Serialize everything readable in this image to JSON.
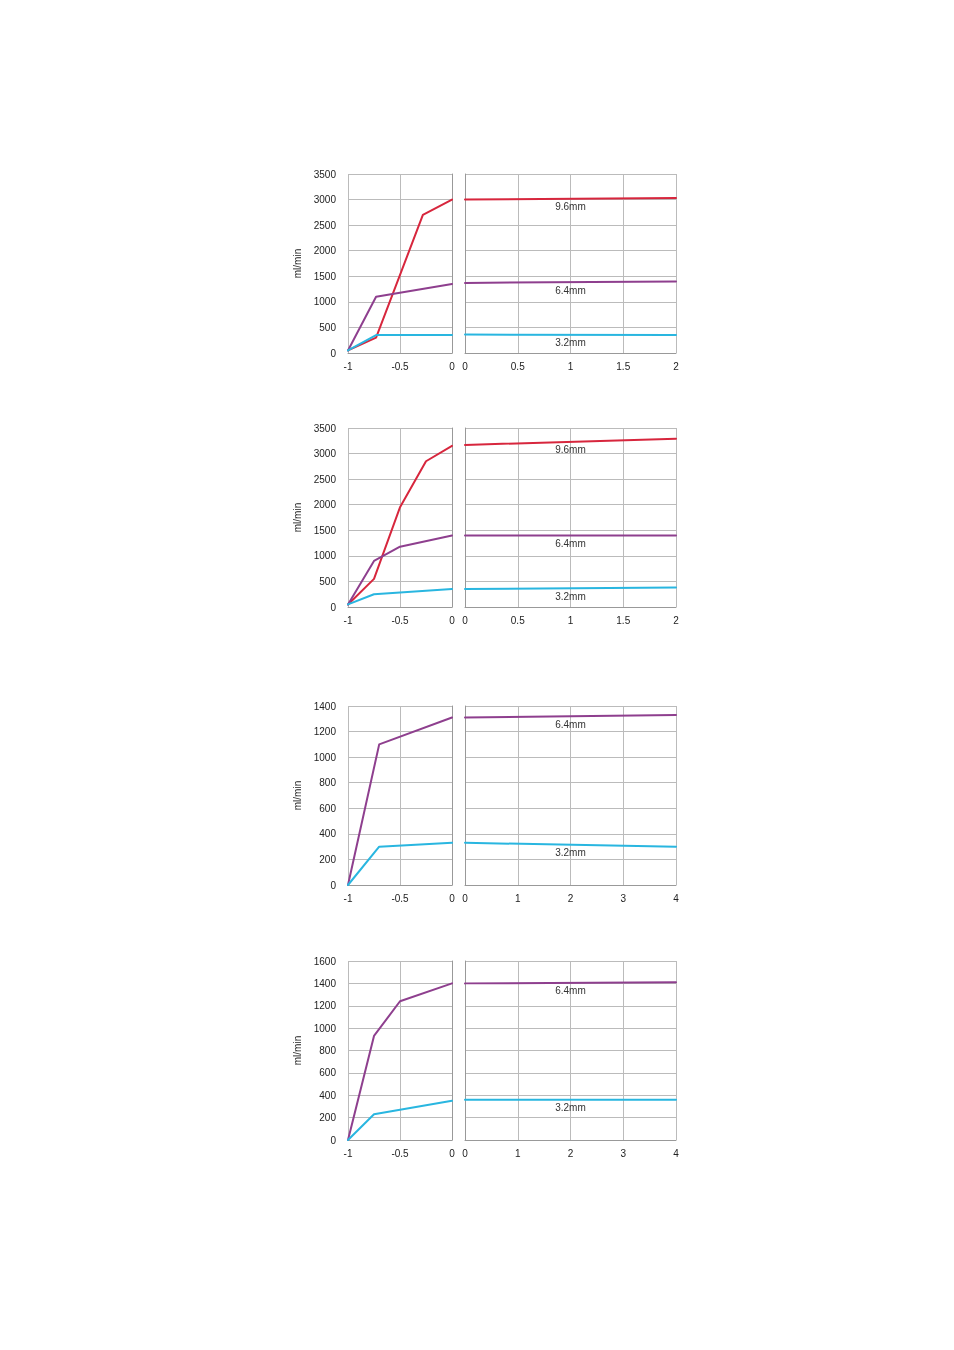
{
  "chart_data": [
    {
      "type": "line",
      "ylabel": "ml/min",
      "xlim": [
        -1,
        0
      ],
      "xticks": [
        -1,
        -0.5,
        0
      ],
      "ylim": [
        0,
        3500
      ],
      "yticks": [
        0,
        500,
        1000,
        1500,
        2000,
        2500,
        3000,
        3500
      ],
      "grid": true,
      "marker": "none",
      "series": [
        {
          "color": "#d7263d",
          "x": [
            -1,
            -0.73,
            -0.28,
            0
          ],
          "values": [
            50,
            300,
            2700,
            3000
          ]
        },
        {
          "color": "#8e3f8e",
          "x": [
            -1,
            -0.73,
            0
          ],
          "values": [
            50,
            1100,
            1350
          ]
        },
        {
          "color": "#29b6e0",
          "x": [
            -1,
            -0.73,
            0
          ],
          "values": [
            50,
            350,
            350
          ]
        }
      ]
    },
    {
      "type": "line",
      "xlim": [
        0,
        2
      ],
      "xticks": [
        0,
        0.5,
        1,
        1.5,
        2
      ],
      "ylim": [
        0,
        3500
      ],
      "yticks": [
        0,
        500,
        1000,
        1500,
        2000,
        2500,
        3000,
        3500
      ],
      "tick_labels": "x",
      "grid": true,
      "marker": "none",
      "series": [
        {
          "name": "9.6mm",
          "color": "#d7263d",
          "x": [
            0,
            2
          ],
          "values": [
            3000,
            3030
          ]
        },
        {
          "name": "6.4mm",
          "color": "#8e3f8e",
          "x": [
            0,
            2
          ],
          "values": [
            1370,
            1400
          ]
        },
        {
          "name": "3.2mm",
          "color": "#29b6e0",
          "x": [
            0,
            2
          ],
          "values": [
            360,
            350
          ]
        }
      ]
    },
    {
      "type": "line",
      "ylabel": "ml/min",
      "xlim": [
        -1,
        0
      ],
      "xticks": [
        -1,
        -0.5,
        0
      ],
      "ylim": [
        0,
        3500
      ],
      "yticks": [
        0,
        500,
        1000,
        1500,
        2000,
        2500,
        3000,
        3500
      ],
      "grid": true,
      "marker": "none",
      "series": [
        {
          "color": "#d7263d",
          "x": [
            -1,
            -0.75,
            -0.5,
            -0.25,
            0
          ],
          "values": [
            50,
            550,
            1950,
            2850,
            3150
          ]
        },
        {
          "color": "#8e3f8e",
          "x": [
            -1,
            -0.75,
            -0.5,
            0
          ],
          "values": [
            50,
            900,
            1180,
            1400
          ]
        },
        {
          "color": "#29b6e0",
          "x": [
            -1,
            -0.75,
            0
          ],
          "values": [
            50,
            250,
            350
          ]
        }
      ]
    },
    {
      "type": "line",
      "xlim": [
        0,
        2
      ],
      "xticks": [
        0,
        0.5,
        1,
        1.5,
        2
      ],
      "ylim": [
        0,
        3500
      ],
      "yticks": [
        0,
        500,
        1000,
        1500,
        2000,
        2500,
        3000,
        3500
      ],
      "tick_labels": "x",
      "grid": true,
      "marker": "none",
      "series": [
        {
          "name": "9.6mm",
          "color": "#d7263d",
          "x": [
            0,
            2
          ],
          "values": [
            3170,
            3290
          ]
        },
        {
          "name": "6.4mm",
          "color": "#8e3f8e",
          "x": [
            0,
            2
          ],
          "values": [
            1400,
            1400
          ]
        },
        {
          "name": "3.2mm",
          "color": "#29b6e0",
          "x": [
            0,
            2
          ],
          "values": [
            350,
            380
          ]
        }
      ]
    },
    {
      "type": "line",
      "ylabel": "ml/min",
      "xlim": [
        -1,
        0
      ],
      "xticks": [
        -1,
        -0.5,
        0
      ],
      "ylim": [
        0,
        1400
      ],
      "yticks": [
        0,
        200,
        400,
        600,
        800,
        1000,
        1200,
        1400
      ],
      "grid": true,
      "marker": "none",
      "series": [
        {
          "color": "#8e3f8e",
          "x": [
            -1,
            -0.7,
            0
          ],
          "values": [
            0,
            1100,
            1310
          ]
        },
        {
          "color": "#29b6e0",
          "x": [
            -1,
            -0.7,
            0
          ],
          "values": [
            0,
            300,
            330
          ]
        }
      ]
    },
    {
      "type": "line",
      "xlim": [
        0,
        4
      ],
      "xticks": [
        0,
        1,
        2,
        3,
        4
      ],
      "ylim": [
        0,
        1400
      ],
      "yticks": [
        0,
        200,
        400,
        600,
        800,
        1000,
        1200,
        1400
      ],
      "tick_labels": "x",
      "grid": true,
      "marker": "none",
      "series": [
        {
          "name": "6.4mm",
          "color": "#8e3f8e",
          "x": [
            0,
            4
          ],
          "values": [
            1310,
            1330
          ]
        },
        {
          "name": "3.2mm",
          "color": "#29b6e0",
          "x": [
            0,
            4
          ],
          "values": [
            330,
            300
          ]
        }
      ]
    },
    {
      "type": "line",
      "ylabel": "ml/min",
      "xlim": [
        -1,
        0
      ],
      "xticks": [
        -1,
        -0.5,
        0
      ],
      "ylim": [
        0,
        1600
      ],
      "yticks": [
        0,
        200,
        400,
        600,
        800,
        1000,
        1200,
        1400,
        1600
      ],
      "grid": true,
      "marker": "none",
      "series": [
        {
          "color": "#8e3f8e",
          "x": [
            -1,
            -0.75,
            -0.5,
            0
          ],
          "values": [
            0,
            930,
            1240,
            1400
          ]
        },
        {
          "color": "#29b6e0",
          "x": [
            -1,
            -0.75,
            -0.5,
            0
          ],
          "values": [
            0,
            230,
            270,
            350
          ]
        }
      ]
    },
    {
      "type": "line",
      "xlim": [
        0,
        4
      ],
      "xticks": [
        0,
        1,
        2,
        3,
        4
      ],
      "ylim": [
        0,
        1600
      ],
      "yticks": [
        0,
        200,
        400,
        600,
        800,
        1000,
        1200,
        1400,
        1600
      ],
      "tick_labels": "x",
      "grid": true,
      "marker": "none",
      "series": [
        {
          "name": "6.4mm",
          "color": "#8e3f8e",
          "x": [
            0,
            4
          ],
          "values": [
            1400,
            1410
          ]
        },
        {
          "name": "3.2mm",
          "color": "#29b6e0",
          "x": [
            0,
            4
          ],
          "values": [
            360,
            360
          ]
        }
      ]
    }
  ]
}
